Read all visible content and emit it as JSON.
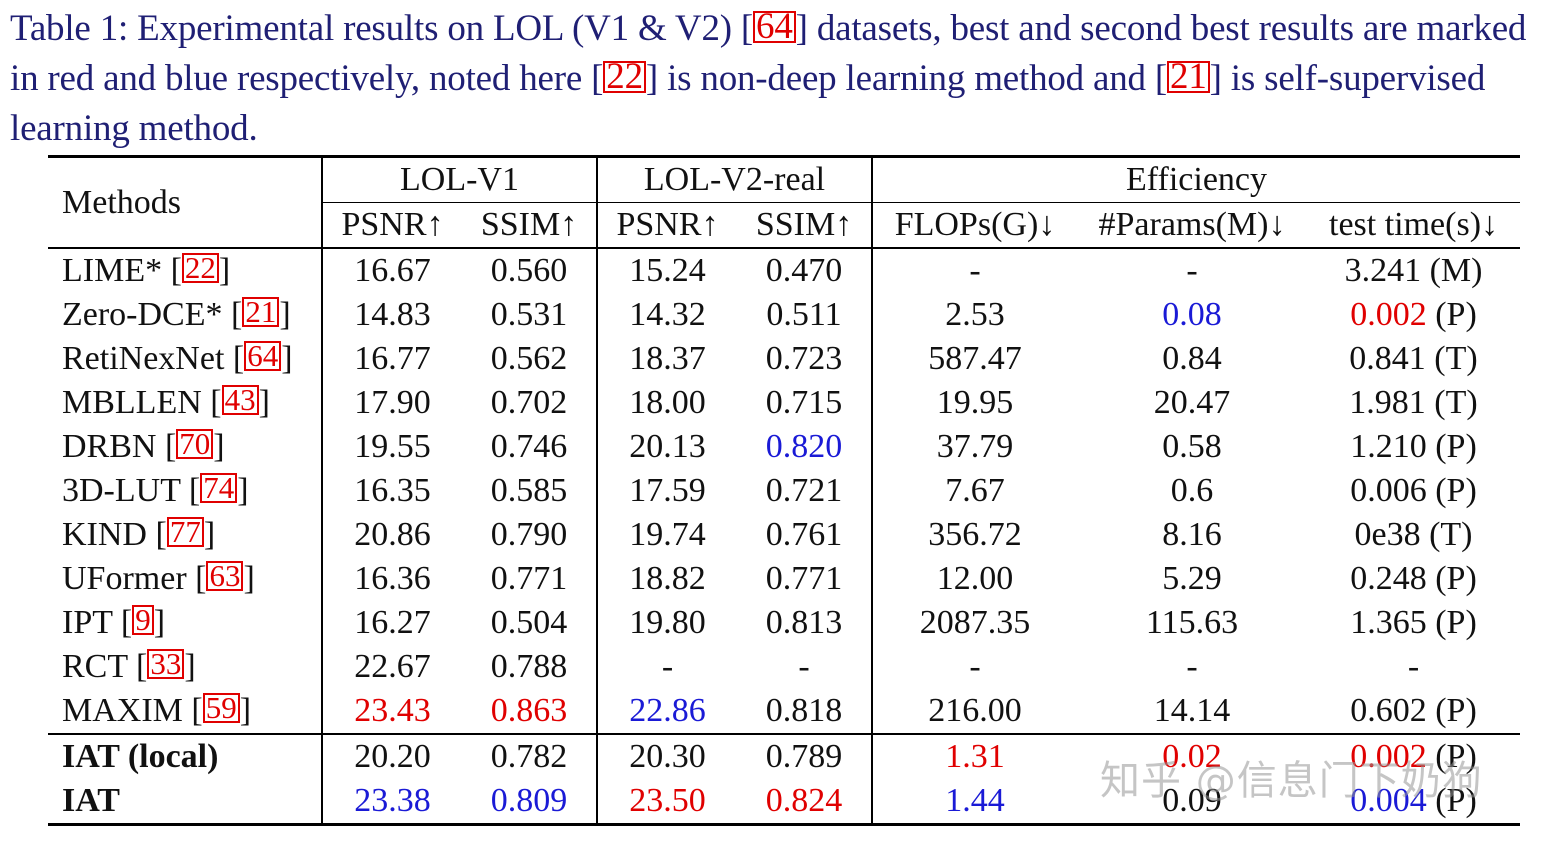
{
  "caption": {
    "part1": "Table 1: Experimental results on LOL (V1 & V2) [",
    "cite1": "64",
    "part2": "] datasets, best and second best results are marked in red and blue respectively, noted here [",
    "cite2": "22",
    "part3": "] is non-deep learning method and [",
    "cite3": "21",
    "part4": "] is self-supervised learning method."
  },
  "headers": {
    "methods": "Methods",
    "group_v1": "LOL-V1",
    "group_v2": "LOL-V2-real",
    "group_eff": "Efficiency",
    "psnr_v1": "PSNR↑",
    "ssim_v1": "SSIM↑",
    "psnr_v2": "PSNR↑",
    "ssim_v2": "SSIM↑",
    "flops": "FLOPs(G)↓",
    "params": "#Params(M)↓",
    "time": "test time(s)↓"
  },
  "rows": [
    {
      "name": "LIME* [",
      "cite": "22",
      "close": "]",
      "v1_psnr": "16.67",
      "v1_ssim": "0.560",
      "v2_psnr": "15.24",
      "v2_ssim": "0.470",
      "flops": "-",
      "params": "-",
      "time_val": "3.241",
      "time_dev": " (M)"
    },
    {
      "name": "Zero-DCE* [",
      "cite": "21",
      "close": "]",
      "v1_psnr": "14.83",
      "v1_ssim": "0.531",
      "v2_psnr": "14.32",
      "v2_ssim": "0.511",
      "flops": "2.53",
      "params": "0.08",
      "time_val": "0.002",
      "time_dev": " (P)"
    },
    {
      "name": "RetiNexNet [",
      "cite": "64",
      "close": "]",
      "v1_psnr": "16.77",
      "v1_ssim": "0.562",
      "v2_psnr": "18.37",
      "v2_ssim": "0.723",
      "flops": "587.47",
      "params": "0.84",
      "time_val": "0.841",
      "time_dev": " (T)"
    },
    {
      "name": "MBLLEN [",
      "cite": "43",
      "close": "]",
      "v1_psnr": "17.90",
      "v1_ssim": "0.702",
      "v2_psnr": "18.00",
      "v2_ssim": "0.715",
      "flops": "19.95",
      "params": "20.47",
      "time_val": "1.981",
      "time_dev": " (T)"
    },
    {
      "name": "DRBN [",
      "cite": "70",
      "close": "]",
      "v1_psnr": "19.55",
      "v1_ssim": "0.746",
      "v2_psnr": "20.13",
      "v2_ssim": "0.820",
      "flops": "37.79",
      "params": "0.58",
      "time_val": "1.210",
      "time_dev": " (P)"
    },
    {
      "name": "3D-LUT [",
      "cite": "74",
      "close": "]",
      "v1_psnr": "16.35",
      "v1_ssim": "0.585",
      "v2_psnr": "17.59",
      "v2_ssim": "0.721",
      "flops": "7.67",
      "params": "0.6",
      "time_val": "0.006",
      "time_dev": " (P)"
    },
    {
      "name": "KIND [",
      "cite": "77",
      "close": "]",
      "v1_psnr": "20.86",
      "v1_ssim": "0.790",
      "v2_psnr": "19.74",
      "v2_ssim": "0.761",
      "flops": "356.72",
      "params": "8.16",
      "time_val": "0e38",
      "time_dev": " (T)"
    },
    {
      "name": "UFormer [",
      "cite": "63",
      "close": "]",
      "v1_psnr": "16.36",
      "v1_ssim": "0.771",
      "v2_psnr": "18.82",
      "v2_ssim": "0.771",
      "flops": "12.00",
      "params": "5.29",
      "time_val": "0.248",
      "time_dev": " (P)"
    },
    {
      "name": "IPT [",
      "cite": "9",
      "close": "]",
      "v1_psnr": "16.27",
      "v1_ssim": "0.504",
      "v2_psnr": "19.80",
      "v2_ssim": "0.813",
      "flops": "2087.35",
      "params": "115.63",
      "time_val": "1.365",
      "time_dev": " (P)"
    },
    {
      "name": "RCT [",
      "cite": "33",
      "close": "]",
      "v1_psnr": "22.67",
      "v1_ssim": "0.788",
      "v2_psnr": "-",
      "v2_ssim": "-",
      "flops": "-",
      "params": "-",
      "time_val": "-",
      "time_dev": ""
    },
    {
      "name": "MAXIM [",
      "cite": "59",
      "close": "]",
      "v1_psnr": "23.43",
      "v1_ssim": "0.863",
      "v2_psnr": "22.86",
      "v2_ssim": "0.818",
      "flops": "216.00",
      "params": "14.14",
      "time_val": "0.602",
      "time_dev": " (P)"
    }
  ],
  "ours": [
    {
      "name": "IAT (local)",
      "v1_psnr": "20.20",
      "v1_ssim": "0.782",
      "v2_psnr": "20.30",
      "v2_ssim": "0.789",
      "flops": "1.31",
      "params": "0.02",
      "time_val": "0.002",
      "time_dev": " (P)"
    },
    {
      "name": "IAT",
      "v1_psnr": "23.38",
      "v1_ssim": "0.809",
      "v2_psnr": "23.50",
      "v2_ssim": "0.824",
      "flops": "1.44",
      "params": "0.09",
      "time_val": "0.004",
      "time_dev": " (P)"
    }
  ],
  "highlight_colors": {
    "best": "#e00000",
    "second": "#1a1ad6"
  },
  "watermark": "知乎 @信息门下奶狗"
}
